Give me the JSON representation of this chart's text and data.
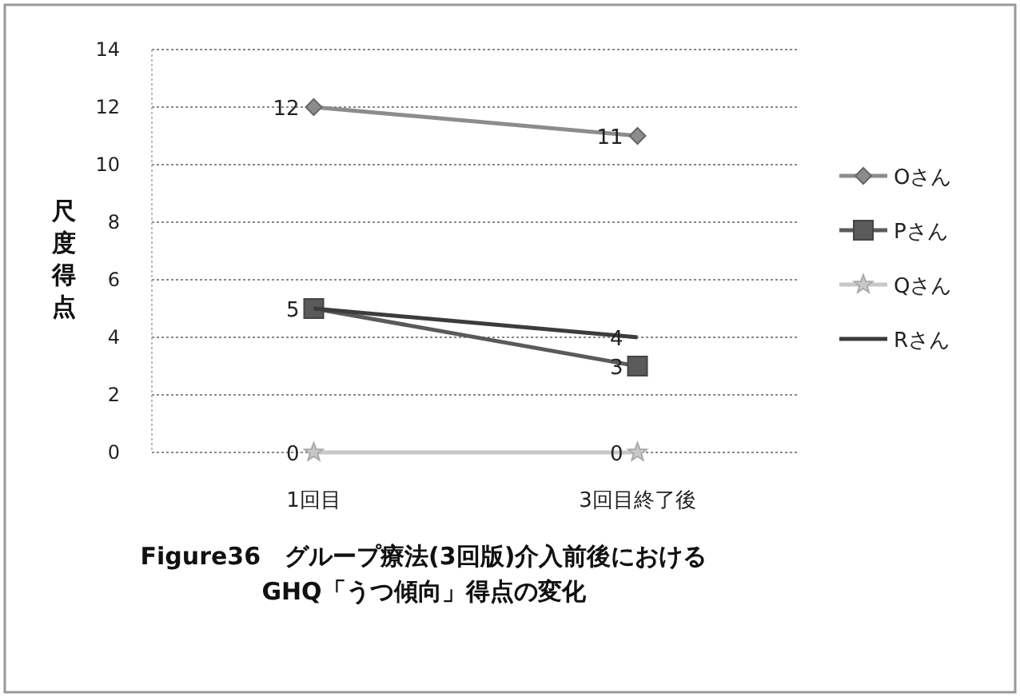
{
  "chart_data": {
    "type": "line",
    "title": "Figure36　グループ療法(3回版)介入前後における\nGHQ「うつ傾向」得点の変化",
    "ylabel": "尺度得点",
    "categories": [
      "1回目",
      "3回目終了後"
    ],
    "ylim": [
      0,
      14
    ],
    "yticks": [
      0,
      2,
      4,
      6,
      8,
      10,
      12,
      14
    ],
    "grid": "y",
    "legend": "right",
    "line_style": "solid",
    "series": [
      {
        "name": "Oさん",
        "color": "#8c8c8c",
        "marker": "diamond",
        "values": [
          12,
          11
        ],
        "value_labels": [
          "12",
          "11"
        ]
      },
      {
        "name": "Pさん",
        "color": "#5a5a5a",
        "marker": "square",
        "values": [
          5,
          3
        ],
        "value_labels": [
          "5",
          "3"
        ]
      },
      {
        "name": "Qさん",
        "color": "#c8c8c8",
        "marker": "star",
        "values": [
          0,
          0
        ],
        "value_labels": [
          "0",
          "0"
        ]
      },
      {
        "name": "Rさん",
        "color": "#3c3c3c",
        "marker": "none",
        "values": [
          5,
          4
        ],
        "value_labels": [
          null,
          "4"
        ]
      }
    ]
  }
}
